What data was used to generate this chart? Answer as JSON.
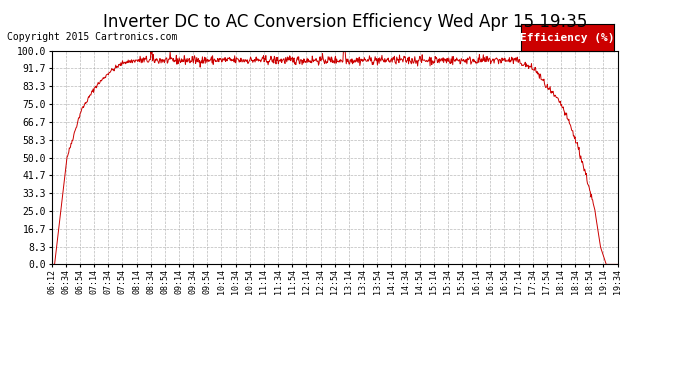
{
  "title": "Inverter DC to AC Conversion Efficiency Wed Apr 15 19:35",
  "copyright": "Copyright 2015 Cartronics.com",
  "legend_label": "Efficiency (%)",
  "legend_bg": "#cc0000",
  "legend_text_color": "#ffffff",
  "line_color": "#cc0000",
  "bg_color": "#ffffff",
  "plot_bg_color": "#ffffff",
  "grid_color": "#aaaaaa",
  "title_fontsize": 12,
  "ylabel_values": [
    0.0,
    8.3,
    16.7,
    25.0,
    33.3,
    41.7,
    50.0,
    58.3,
    66.7,
    75.0,
    83.3,
    91.7,
    100.0
  ],
  "x_tick_labels": [
    "06:12",
    "06:34",
    "06:54",
    "07:14",
    "07:34",
    "07:54",
    "08:14",
    "08:34",
    "08:54",
    "09:14",
    "09:34",
    "09:54",
    "10:14",
    "10:34",
    "10:54",
    "11:14",
    "11:34",
    "11:54",
    "12:14",
    "12:34",
    "12:54",
    "13:14",
    "13:34",
    "13:54",
    "14:14",
    "14:34",
    "14:54",
    "15:14",
    "15:34",
    "15:54",
    "16:14",
    "16:34",
    "16:54",
    "17:14",
    "17:34",
    "17:54",
    "18:14",
    "18:34",
    "18:54",
    "19:14",
    "19:34"
  ],
  "ylim": [
    0.0,
    100.0
  ],
  "num_points": 1000
}
